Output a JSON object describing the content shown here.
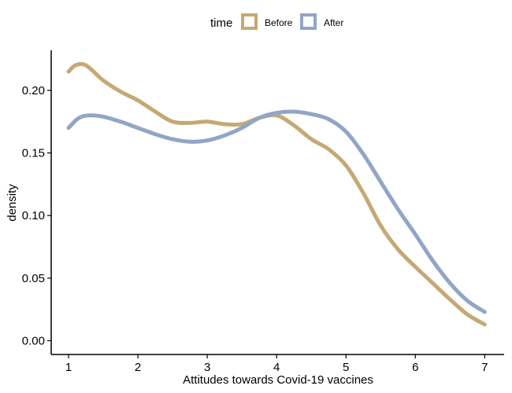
{
  "chart_data": {
    "type": "line",
    "xlabel": "Attitudes towards Covid-19 vaccines",
    "ylabel": "density",
    "xlim": [
      0.75,
      7.28
    ],
    "ylim": [
      -0.011,
      0.232
    ],
    "xticks": [
      1,
      2,
      3,
      4,
      5,
      6,
      7
    ],
    "yticks": [
      0.0,
      0.05,
      0.1,
      0.15,
      0.2
    ],
    "ytick_labels": [
      "0.00",
      "0.05",
      "0.10",
      "0.15",
      "0.20"
    ],
    "legend": {
      "title": "time",
      "position": "top"
    },
    "grid": false,
    "series": [
      {
        "name": "Before",
        "color": "#C6A874",
        "points": [
          [
            1.0,
            0.215
          ],
          [
            1.1,
            0.22
          ],
          [
            1.25,
            0.22
          ],
          [
            1.5,
            0.208
          ],
          [
            1.75,
            0.199
          ],
          [
            2.0,
            0.192
          ],
          [
            2.25,
            0.183
          ],
          [
            2.5,
            0.175
          ],
          [
            2.75,
            0.174
          ],
          [
            3.0,
            0.175
          ],
          [
            3.25,
            0.173
          ],
          [
            3.5,
            0.173
          ],
          [
            3.75,
            0.178
          ],
          [
            4.0,
            0.18
          ],
          [
            4.25,
            0.172
          ],
          [
            4.5,
            0.161
          ],
          [
            4.75,
            0.153
          ],
          [
            5.0,
            0.14
          ],
          [
            5.25,
            0.118
          ],
          [
            5.5,
            0.092
          ],
          [
            5.75,
            0.073
          ],
          [
            6.0,
            0.059
          ],
          [
            6.25,
            0.046
          ],
          [
            6.5,
            0.033
          ],
          [
            6.75,
            0.021
          ],
          [
            7.0,
            0.013
          ]
        ]
      },
      {
        "name": "After",
        "color": "#91A5C6",
        "points": [
          [
            1.0,
            0.17
          ],
          [
            1.15,
            0.178
          ],
          [
            1.3,
            0.18
          ],
          [
            1.5,
            0.179
          ],
          [
            1.75,
            0.175
          ],
          [
            2.0,
            0.17
          ],
          [
            2.25,
            0.165
          ],
          [
            2.5,
            0.161
          ],
          [
            2.75,
            0.159
          ],
          [
            3.0,
            0.16
          ],
          [
            3.25,
            0.164
          ],
          [
            3.5,
            0.17
          ],
          [
            3.75,
            0.178
          ],
          [
            4.0,
            0.182
          ],
          [
            4.25,
            0.183
          ],
          [
            4.5,
            0.181
          ],
          [
            4.75,
            0.177
          ],
          [
            5.0,
            0.167
          ],
          [
            5.25,
            0.149
          ],
          [
            5.5,
            0.127
          ],
          [
            5.75,
            0.105
          ],
          [
            6.0,
            0.085
          ],
          [
            6.25,
            0.064
          ],
          [
            6.5,
            0.046
          ],
          [
            6.75,
            0.032
          ],
          [
            7.0,
            0.023
          ]
        ]
      }
    ]
  }
}
